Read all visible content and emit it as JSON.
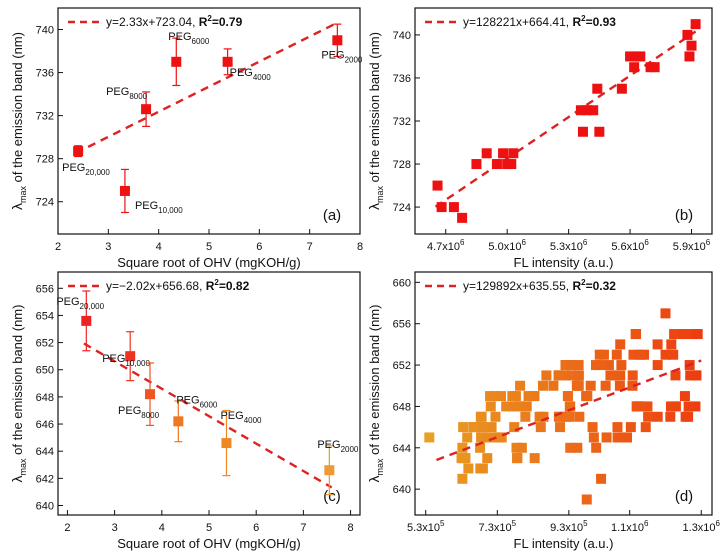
{
  "chart_data": [
    {
      "id": "a",
      "type": "scatter",
      "panel_label": "(a)",
      "xlabel": "Square root of OHV (mgKOH/g)",
      "ylabel": "λmax of the emission band (nm)",
      "ylabel_main": "λ",
      "ylabel_sub": "max",
      "ylabel_rest": " of the emission band (nm)",
      "xlim": [
        2,
        8
      ],
      "ylim": [
        721,
        742
      ],
      "xticks": [
        2,
        3,
        4,
        5,
        6,
        7,
        8
      ],
      "yticks": [
        724,
        728,
        732,
        736,
        740
      ],
      "xtick_labels": [
        "2",
        "3",
        "4",
        "5",
        "6",
        "7",
        "8"
      ],
      "ytick_labels": [
        "724",
        "728",
        "732",
        "736",
        "740"
      ],
      "marker_color": "#ee1111",
      "fit_color": "#dd2222",
      "equation": "y=2.33x+723.04,",
      "r2_label": "R",
      "r2_value": "=0.79",
      "fit": {
        "slope": 2.33,
        "intercept": 723.04,
        "x_range": [
          2.35,
          7.55
        ]
      },
      "points": [
        {
          "x": 2.4,
          "y": 728.7,
          "err": 0.5,
          "label": "PEG",
          "sub": "20,000"
        },
        {
          "x": 3.33,
          "y": 725.0,
          "err": 2.0,
          "label": "PEG",
          "sub": "10,000"
        },
        {
          "x": 3.75,
          "y": 732.6,
          "err": 1.6,
          "label": "PEG",
          "sub": "8000"
        },
        {
          "x": 4.35,
          "y": 737.0,
          "err": 2.2,
          "label": "PEG",
          "sub": "6000"
        },
        {
          "x": 5.37,
          "y": 737.0,
          "err": 1.2,
          "label": "PEG",
          "sub": "4000"
        },
        {
          "x": 7.55,
          "y": 739.0,
          "err": 1.5,
          "label": "PEG",
          "sub": "2000"
        }
      ]
    },
    {
      "id": "b",
      "type": "scatter",
      "panel_label": "(b)",
      "xlabel": "FL intensity (a.u.)",
      "ylabel_main": "λ",
      "ylabel_sub": "max",
      "ylabel_rest": " of the emission band (nm)",
      "xlim": [
        4.55,
        6.0
      ],
      "ylim": [
        721.5,
        742.5
      ],
      "xticks": [
        4.7,
        5.0,
        5.3,
        5.6,
        5.9
      ],
      "yticks": [
        724,
        728,
        732,
        736,
        740
      ],
      "xtick_labels": [
        "4.7x10",
        "5.0x10",
        "5.3x10",
        "5.6x10",
        "5.9x10"
      ],
      "xtick_exp": "6",
      "ytick_labels": [
        "724",
        "728",
        "732",
        "736",
        "740"
      ],
      "marker_color": "#ee1111",
      "fit_color": "#dd2222",
      "equation": "y=128221x+664.41,",
      "r2_label": "R",
      "r2_value": "=0.93",
      "fit": {
        "slope": 12.8221,
        "intercept": 664.41,
        "x_range": [
          4.65,
          5.92
        ]
      },
      "points": [
        [
          4.66,
          726
        ],
        [
          4.68,
          724
        ],
        [
          4.74,
          724
        ],
        [
          4.78,
          723
        ],
        [
          4.85,
          728
        ],
        [
          4.9,
          729
        ],
        [
          4.95,
          728
        ],
        [
          4.98,
          729
        ],
        [
          5.0,
          728
        ],
        [
          5.02,
          728
        ],
        [
          5.03,
          729
        ],
        [
          5.36,
          733
        ],
        [
          5.37,
          731
        ],
        [
          5.39,
          733
        ],
        [
          5.42,
          733
        ],
        [
          5.44,
          735
        ],
        [
          5.45,
          731
        ],
        [
          5.56,
          735
        ],
        [
          5.6,
          738
        ],
        [
          5.62,
          737
        ],
        [
          5.63,
          738
        ],
        [
          5.65,
          738
        ],
        [
          5.7,
          737
        ],
        [
          5.72,
          737
        ],
        [
          5.88,
          740
        ],
        [
          5.9,
          739
        ],
        [
          5.92,
          741
        ],
        [
          5.89,
          738
        ]
      ]
    },
    {
      "id": "c",
      "type": "scatter",
      "panel_label": "(c)",
      "xlabel": "Square root of OHV (mgKOH/g)",
      "ylabel_main": "λ",
      "ylabel_sub": "max",
      "ylabel_rest": " of the emission band (nm)",
      "xlim": [
        1.8,
        8.2
      ],
      "ylim": [
        639.3,
        657.2
      ],
      "xticks": [
        2,
        3,
        4,
        5,
        6,
        7,
        8
      ],
      "yticks": [
        640,
        642,
        644,
        646,
        648,
        650,
        652,
        654,
        656
      ],
      "xtick_labels": [
        "2",
        "3",
        "4",
        "5",
        "6",
        "7",
        "8"
      ],
      "ytick_labels": [
        "640",
        "642",
        "644",
        "646",
        "648",
        "650",
        "652",
        "654",
        "656"
      ],
      "marker_color": "#ee8822",
      "fit_color": "#dd2222",
      "equation": "y=−2.02x+656.68,",
      "r2_label": "R",
      "r2_value": "=0.82",
      "fit": {
        "slope": -2.02,
        "intercept": 656.68,
        "x_range": [
          2.35,
          7.6
        ]
      },
      "points": [
        {
          "x": 2.4,
          "y": 653.6,
          "err": 2.2,
          "label": "PEG",
          "sub": "20,000",
          "color": "#ee2222"
        },
        {
          "x": 3.33,
          "y": 651.0,
          "err": 1.8,
          "label": "PEG",
          "sub": "10,000",
          "color": "#ee3322"
        },
        {
          "x": 3.75,
          "y": 648.2,
          "err": 2.3,
          "label": "PEG",
          "sub": "8000",
          "color": "#ee5522"
        },
        {
          "x": 4.35,
          "y": 646.2,
          "err": 1.5,
          "label": "PEG",
          "sub": "6000",
          "color": "#ee7722"
        },
        {
          "x": 5.37,
          "y": 644.6,
          "err": 2.4,
          "label": "PEG",
          "sub": "4000",
          "color": "#ee8822"
        },
        {
          "x": 7.55,
          "y": 642.6,
          "err": 1.8,
          "label": "PEG",
          "sub": "2000",
          "color": "#ee9933"
        }
      ]
    },
    {
      "id": "d",
      "type": "scatter",
      "panel_label": "(d)",
      "xlabel": "FL intensity (a.u.)",
      "ylabel_main": "λ",
      "ylabel_sub": "max",
      "ylabel_rest": " of the emission band (nm)",
      "xlim": [
        5.0,
        13.3
      ],
      "ylim": [
        637.5,
        661.0
      ],
      "xticks": [
        5.3,
        7.3,
        9.3,
        11.0,
        13.0
      ],
      "yticks": [
        640,
        644,
        648,
        652,
        656,
        660
      ],
      "xtick_labels": [
        "5.3x10",
        "7.3x10",
        "9.3x10",
        "1.1x10",
        "1.3x10"
      ],
      "xtick_exps": [
        "5",
        "5",
        "5",
        "6",
        "6"
      ],
      "ytick_labels": [
        "640",
        "644",
        "648",
        "652",
        "656",
        "660"
      ],
      "marker_color": "#ee8822",
      "fit_color": "#dd2222",
      "equation": "y=129892x+635.55,",
      "r2_label": "R",
      "r2_value": "=0.32",
      "fit": {
        "slope": 1.29892,
        "intercept": 635.55,
        "x_range": [
          5.6,
          13.0
        ]
      }
    }
  ]
}
